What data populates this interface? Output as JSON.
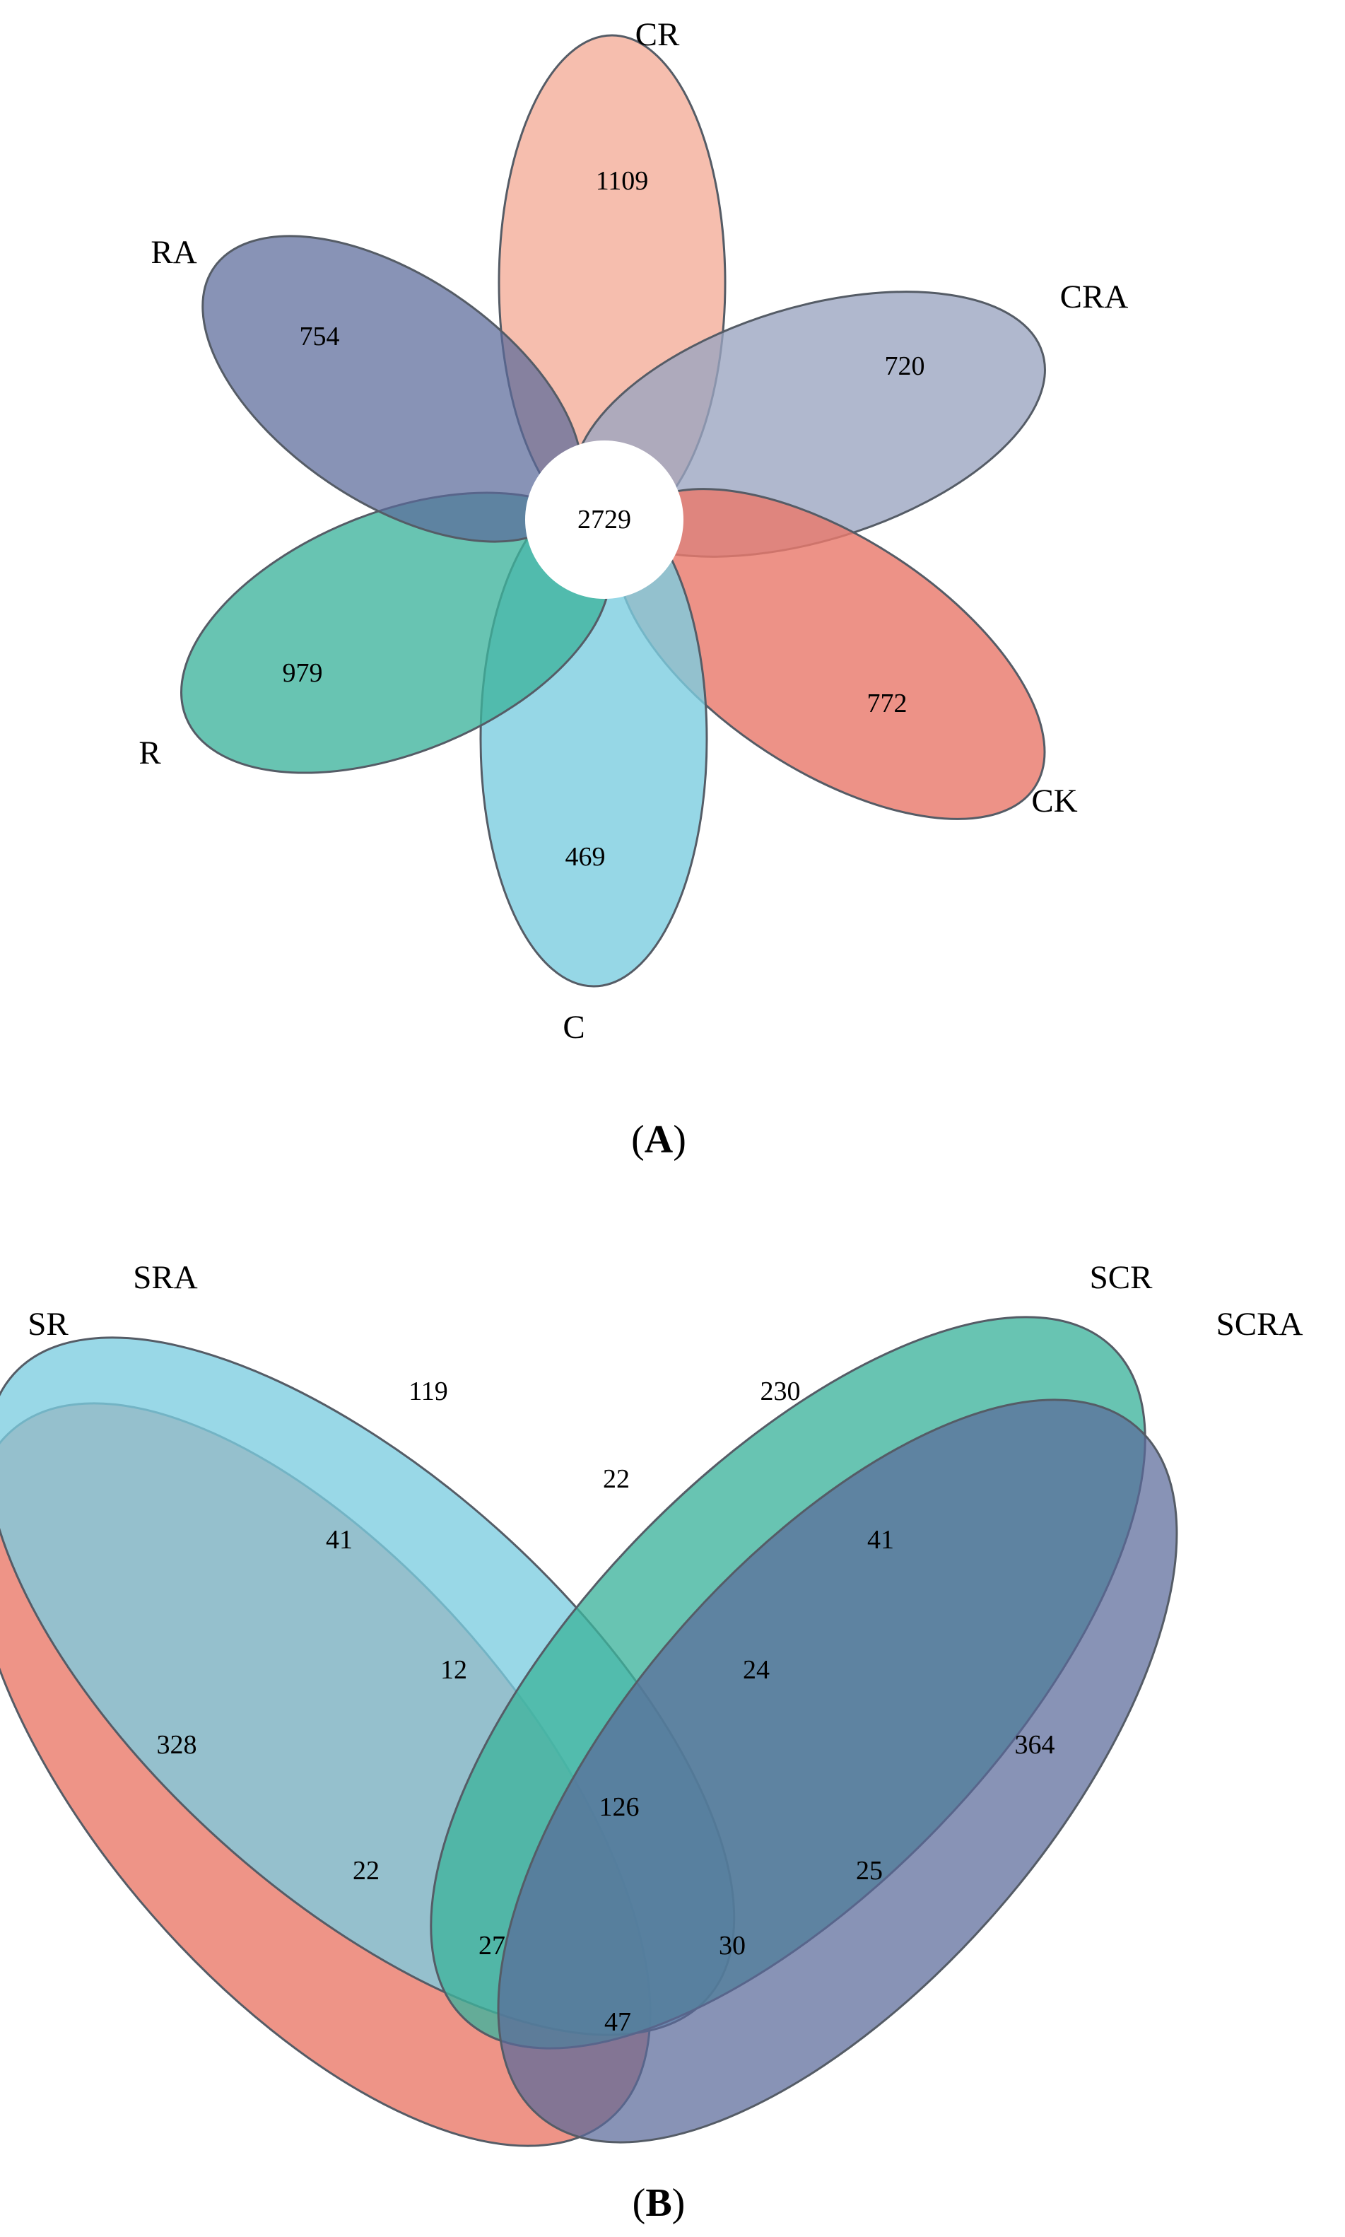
{
  "panel_a": {
    "label_open": "(",
    "label_letter": "A",
    "label_close": ")",
    "center_count": "2729",
    "petals": [
      {
        "id": "CR",
        "name": "CR",
        "count": "1109",
        "color": "#f4b09c"
      },
      {
        "id": "CRA",
        "name": "CRA",
        "count": "720",
        "color": "#9aa4c0"
      },
      {
        "id": "CK",
        "name": "CK",
        "count": "772",
        "color": "#e97a6d"
      },
      {
        "id": "C",
        "name": "C",
        "count": "469",
        "color": "#7ccde0"
      },
      {
        "id": "R",
        "name": "R",
        "count": "979",
        "color": "#3eb49c"
      },
      {
        "id": "RA",
        "name": "RA",
        "count": "754",
        "color": "#5a6a9a"
      }
    ]
  },
  "panel_b": {
    "label_open": "(",
    "label_letter": "B",
    "label_close": ")",
    "sets": [
      {
        "id": "SR",
        "name": "SR",
        "color": "#e8705f"
      },
      {
        "id": "SRA",
        "name": "SRA",
        "color": "#7ccde0"
      },
      {
        "id": "SCR",
        "name": "SCR",
        "color": "#3eb49c"
      },
      {
        "id": "SCRA",
        "name": "SCRA",
        "color": "#5a6a9a"
      }
    ],
    "regions": [
      {
        "sets": "SR",
        "count": "328"
      },
      {
        "sets": "SRA",
        "count": "119"
      },
      {
        "sets": "SCR",
        "count": "230"
      },
      {
        "sets": "SCRA",
        "count": "364"
      },
      {
        "sets": "SR&SRA",
        "count": "41"
      },
      {
        "sets": "SRA&SCR",
        "count": "22"
      },
      {
        "sets": "SCR&SCRA",
        "count": "41"
      },
      {
        "sets": "SR&SRA&SCR",
        "count": "12"
      },
      {
        "sets": "SRA&SCR&SCRA",
        "count": "24"
      },
      {
        "sets": "SR&SRA&SCR&SCRA",
        "count": "126"
      },
      {
        "sets": "SR&SCR",
        "count": "22"
      },
      {
        "sets": "SRA&SCRA",
        "count": "25"
      },
      {
        "sets": "SR&SCR&SCRA",
        "count": "27"
      },
      {
        "sets": "SR&SRA&SCRA",
        "count": "30"
      },
      {
        "sets": "SR&SCRA",
        "count": "47"
      }
    ]
  }
}
